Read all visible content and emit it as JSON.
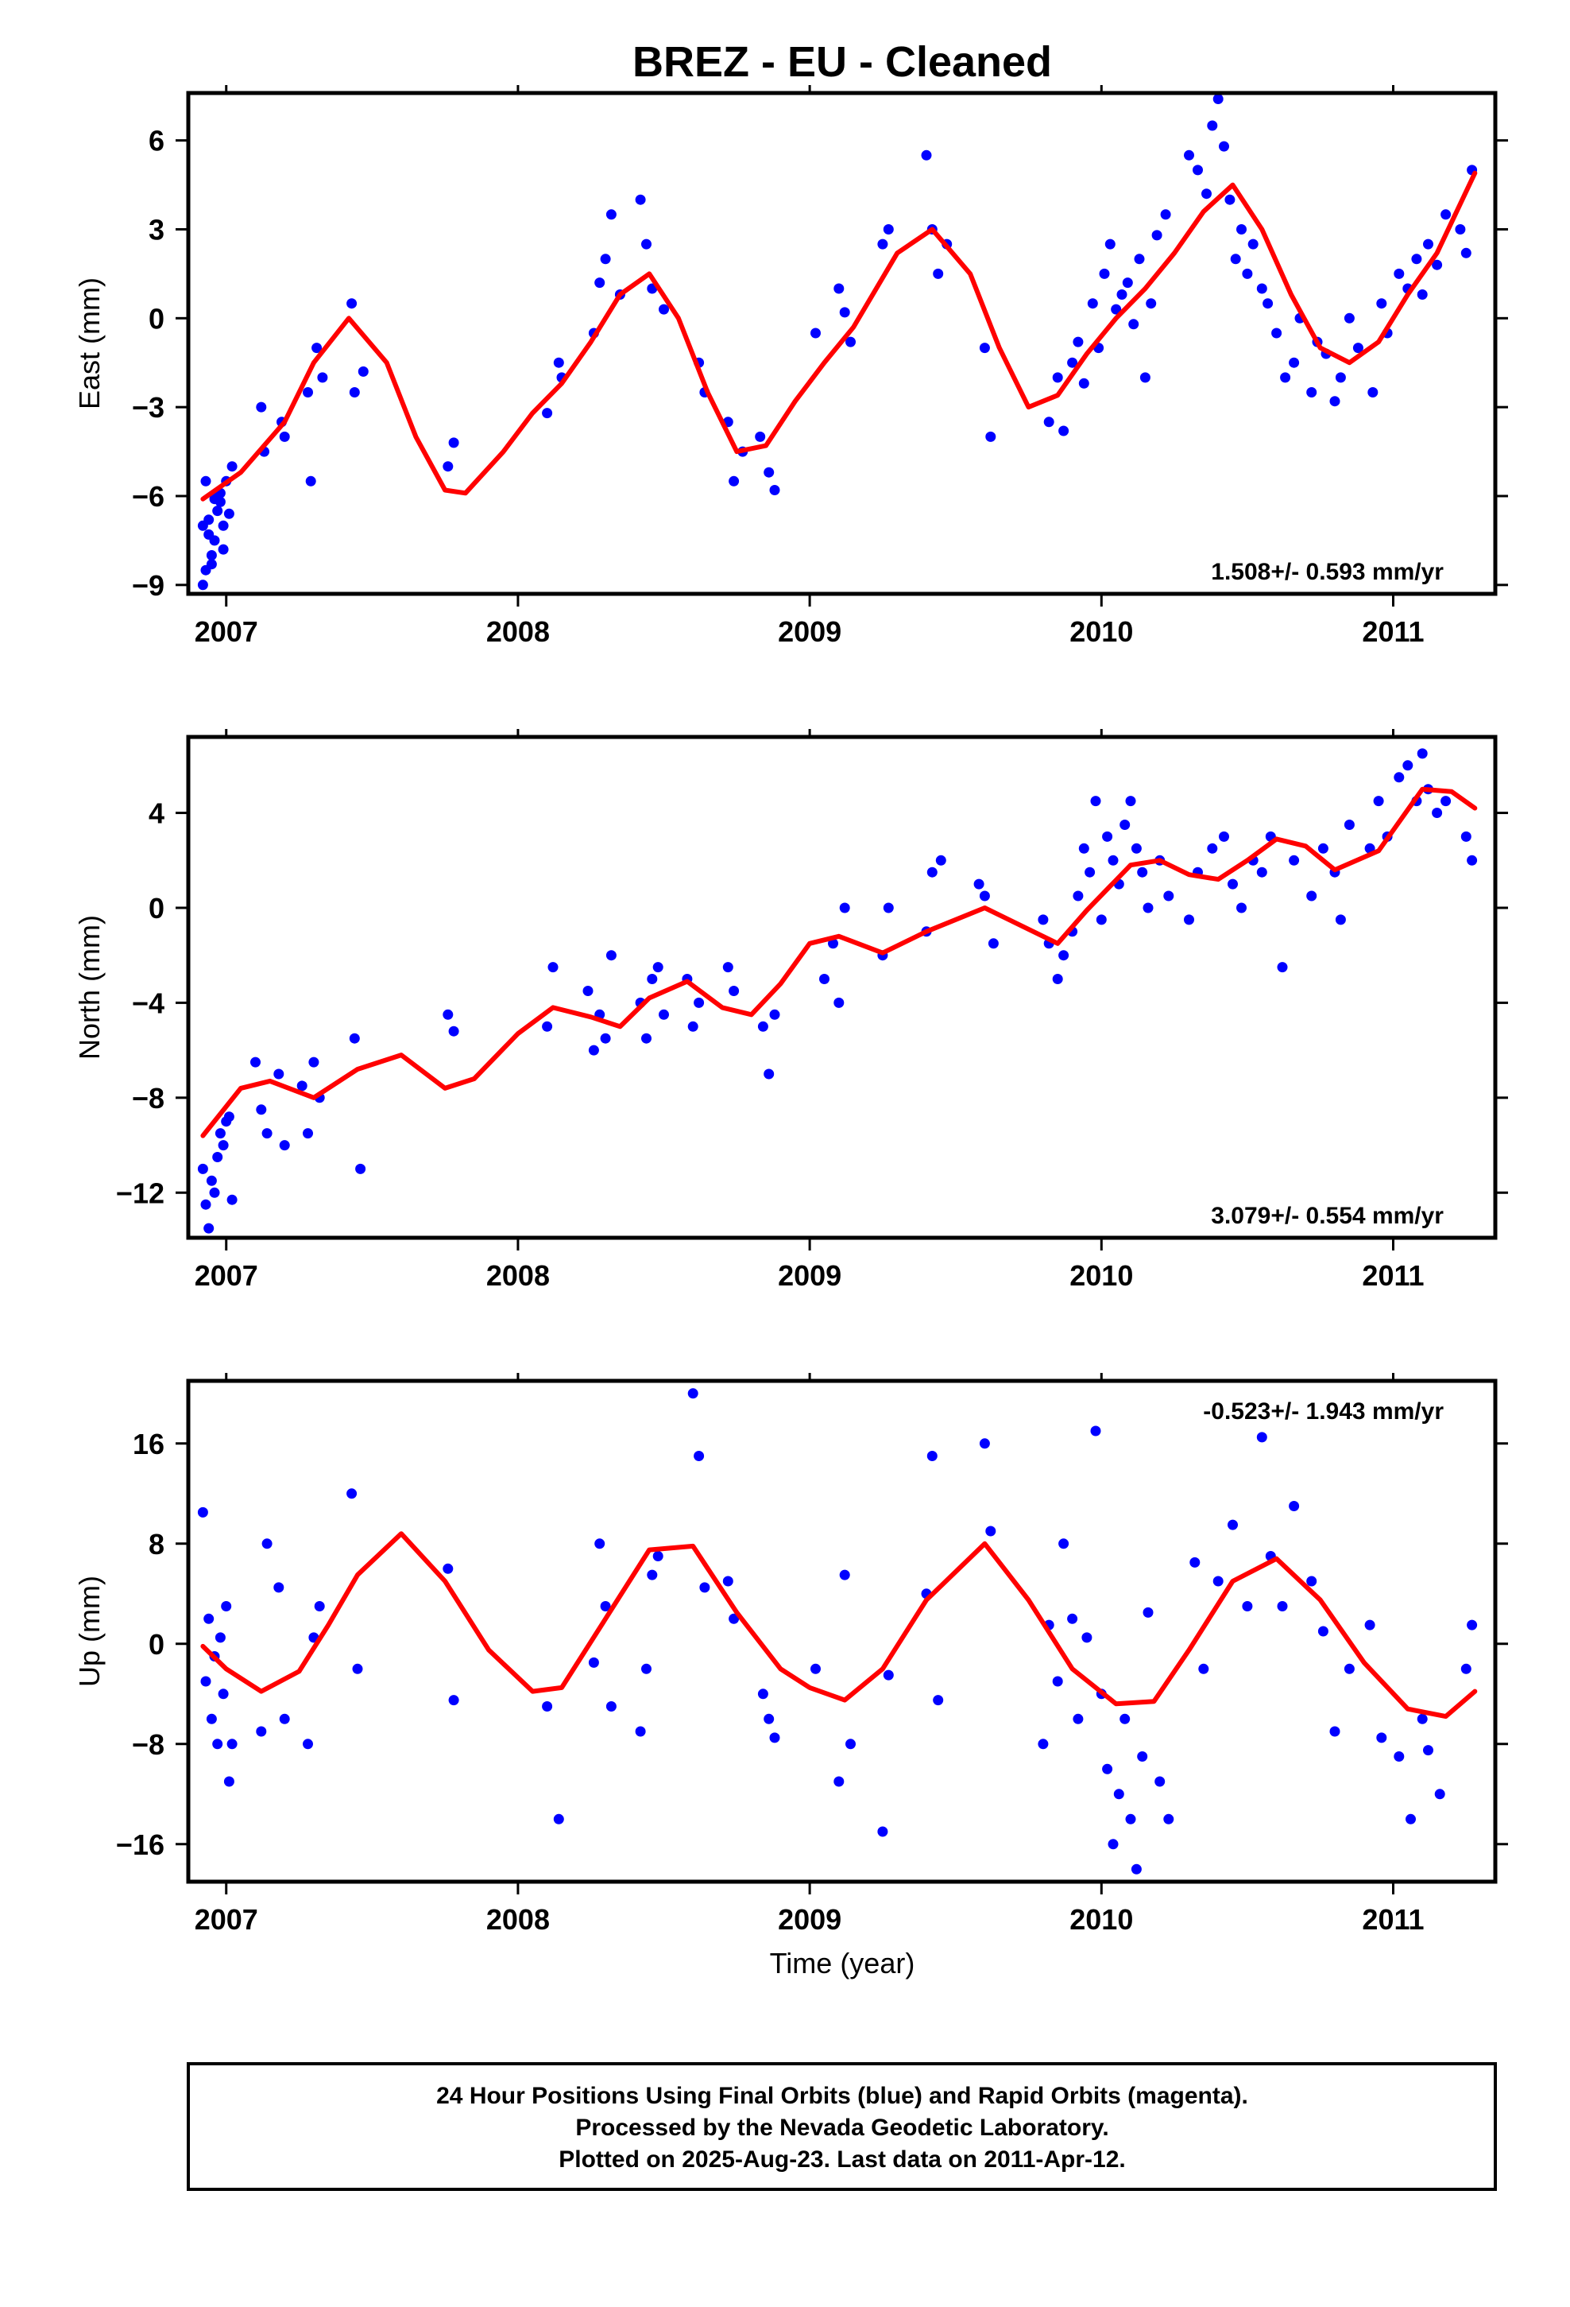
{
  "title": "BREZ  - EU - Cleaned",
  "xlabel": "Time (year)",
  "footer": {
    "line1": "24 Hour Positions Using Final Orbits (blue) and Rapid Orbits (magenta).",
    "line2": "Processed by the Nevada Geodetic Laboratory.",
    "line3": "Plotted on 2025-Aug-23. Last data on 2011-Apr-12."
  },
  "colors": {
    "points": "#0000ff",
    "model": "#ff0000",
    "frame": "#000000"
  },
  "chart_data": [
    {
      "type": "scatter",
      "ylabel": "East (mm)",
      "rate_label": "1.508+/- 0.593 mm/yr",
      "xlim": [
        2006.87,
        2011.35
      ],
      "ylim": [
        -9.3,
        7.6
      ],
      "x_ticks": [
        2007,
        2008,
        2009,
        2010,
        2011
      ],
      "y_ticks": [
        -9,
        -6,
        -3,
        0,
        3,
        6
      ],
      "grid": false,
      "series": [
        {
          "kind": "points",
          "x": [
            2006.92,
            2006.95,
            2006.97,
            2006.99,
            2007.0,
            2007.02,
            2006.92,
            2006.94,
            2006.96,
            2006.98,
            2006.93,
            2006.95,
            2006.97,
            2006.99,
            2006.94,
            2007.01,
            2006.96,
            2006.93,
            2006.98,
            2007.12,
            2007.13,
            2007.19,
            2007.2,
            2007.28,
            2007.29,
            2007.31,
            2007.33,
            2007.43,
            2007.44,
            2007.47,
            2007.76,
            2007.78,
            2008.1,
            2008.14,
            2008.15,
            2008.26,
            2008.28,
            2008.3,
            2008.32,
            2008.35,
            2008.42,
            2008.44,
            2008.46,
            2008.5,
            2008.62,
            2008.64,
            2008.72,
            2008.74,
            2008.77,
            2008.83,
            2008.86,
            2008.88,
            2009.02,
            2009.1,
            2009.12,
            2009.14,
            2009.25,
            2009.27,
            2009.4,
            2009.42,
            2009.44,
            2009.47,
            2009.6,
            2009.62,
            2009.82,
            2009.85,
            2009.87,
            2009.9,
            2009.92,
            2009.94,
            2009.97,
            2009.99,
            2010.01,
            2010.03,
            2010.05,
            2010.07,
            2010.09,
            2010.11,
            2010.13,
            2010.15,
            2010.17,
            2010.19,
            2010.22,
            2010.3,
            2010.33,
            2010.36,
            2010.38,
            2010.4,
            2010.42,
            2010.44,
            2010.46,
            2010.48,
            2010.5,
            2010.52,
            2010.55,
            2010.57,
            2010.6,
            2010.63,
            2010.66,
            2010.68,
            2010.72,
            2010.74,
            2010.77,
            2010.8,
            2010.82,
            2010.85,
            2010.88,
            2010.93,
            2010.96,
            2010.98,
            2011.02,
            2011.05,
            2011.08,
            2011.1,
            2011.12,
            2011.15,
            2011.18,
            2011.23,
            2011.25,
            2011.27
          ],
          "y": [
            -9.0,
            -8.0,
            -6.5,
            -7.0,
            -5.5,
            -5.0,
            -7.0,
            -6.8,
            -7.5,
            -6.2,
            -5.5,
            -8.3,
            -6.0,
            -7.8,
            -7.3,
            -6.6,
            -6.1,
            -8.5,
            -5.9,
            -3.0,
            -4.5,
            -3.5,
            -4.0,
            -2.5,
            -5.5,
            -1.0,
            -2.0,
            0.5,
            -2.5,
            -1.8,
            -5.0,
            -4.2,
            -3.2,
            -1.5,
            -2.0,
            -0.5,
            1.2,
            2.0,
            3.5,
            0.8,
            4.0,
            2.5,
            1.0,
            0.3,
            -1.5,
            -2.5,
            -3.5,
            -5.5,
            -4.5,
            -4.0,
            -5.2,
            -5.8,
            -0.5,
            1.0,
            0.2,
            -0.8,
            2.5,
            3.0,
            5.5,
            3.0,
            1.5,
            2.5,
            -1.0,
            -4.0,
            -3.5,
            -2.0,
            -3.8,
            -1.5,
            -0.8,
            -2.2,
            0.5,
            -1.0,
            1.5,
            2.5,
            0.3,
            0.8,
            1.2,
            -0.2,
            2.0,
            -2.0,
            0.5,
            2.8,
            3.5,
            5.5,
            5.0,
            4.2,
            6.5,
            7.4,
            5.8,
            4.0,
            2.0,
            3.0,
            1.5,
            2.5,
            1.0,
            0.5,
            -0.5,
            -2.0,
            -1.5,
            0.0,
            -2.5,
            -0.8,
            -1.2,
            -2.8,
            -2.0,
            0.0,
            -1.0,
            -2.5,
            0.5,
            -0.5,
            1.5,
            1.0,
            2.0,
            0.8,
            2.5,
            1.8,
            3.5,
            3.0,
            2.2,
            5.0
          ]
        },
        {
          "kind": "model",
          "x": [
            2006.92,
            2007.05,
            2007.2,
            2007.3,
            2007.42,
            2007.55,
            2007.65,
            2007.75,
            2007.82,
            2007.95,
            2008.05,
            2008.15,
            2008.25,
            2008.35,
            2008.45,
            2008.55,
            2008.65,
            2008.75,
            2008.85,
            2008.95,
            2009.05,
            2009.15,
            2009.3,
            2009.42,
            2009.55,
            2009.65,
            2009.75,
            2009.85,
            2009.95,
            2010.05,
            2010.15,
            2010.25,
            2010.35,
            2010.45,
            2010.55,
            2010.65,
            2010.75,
            2010.85,
            2010.95,
            2011.05,
            2011.15,
            2011.28
          ],
          "y": [
            -6.1,
            -5.2,
            -3.5,
            -1.5,
            0.0,
            -1.5,
            -4.0,
            -5.8,
            -5.9,
            -4.5,
            -3.2,
            -2.2,
            -0.8,
            0.8,
            1.5,
            0.0,
            -2.5,
            -4.5,
            -4.3,
            -2.8,
            -1.5,
            -0.3,
            2.2,
            3.0,
            1.5,
            -1.0,
            -3.0,
            -2.6,
            -1.2,
            0.0,
            1.0,
            2.2,
            3.6,
            4.5,
            3.0,
            0.8,
            -1.0,
            -1.5,
            -0.8,
            0.8,
            2.2,
            4.9
          ]
        }
      ]
    },
    {
      "type": "scatter",
      "ylabel": "North (mm)",
      "rate_label": "3.079+/- 0.554 mm/yr",
      "xlim": [
        2006.87,
        2011.35
      ],
      "ylim": [
        -13.9,
        7.2
      ],
      "x_ticks": [
        2007,
        2008,
        2009,
        2010,
        2011
      ],
      "y_ticks": [
        -12,
        -8,
        -4,
        0,
        4
      ],
      "grid": false,
      "series": [
        {
          "kind": "points",
          "x": [
            2006.92,
            2006.93,
            2006.94,
            2006.95,
            2006.96,
            2006.97,
            2006.98,
            2006.99,
            2007.0,
            2007.01,
            2007.02,
            2007.1,
            2007.12,
            2007.14,
            2007.18,
            2007.2,
            2007.26,
            2007.28,
            2007.3,
            2007.32,
            2007.44,
            2007.46,
            2007.76,
            2007.78,
            2008.1,
            2008.12,
            2008.24,
            2008.26,
            2008.28,
            2008.3,
            2008.32,
            2008.42,
            2008.44,
            2008.46,
            2008.48,
            2008.5,
            2008.58,
            2008.6,
            2008.62,
            2008.72,
            2008.74,
            2008.84,
            2008.86,
            2008.88,
            2009.05,
            2009.08,
            2009.1,
            2009.12,
            2009.25,
            2009.27,
            2009.4,
            2009.42,
            2009.45,
            2009.58,
            2009.6,
            2009.63,
            2009.8,
            2009.82,
            2009.85,
            2009.87,
            2009.9,
            2009.92,
            2009.94,
            2009.96,
            2009.98,
            2010.0,
            2010.02,
            2010.04,
            2010.06,
            2010.08,
            2010.1,
            2010.12,
            2010.14,
            2010.16,
            2010.2,
            2010.23,
            2010.3,
            2010.33,
            2010.38,
            2010.42,
            2010.45,
            2010.48,
            2010.52,
            2010.55,
            2010.58,
            2010.62,
            2010.66,
            2010.72,
            2010.76,
            2010.8,
            2010.82,
            2010.85,
            2010.92,
            2010.95,
            2010.98,
            2011.02,
            2011.05,
            2011.08,
            2011.1,
            2011.12,
            2011.15,
            2011.18,
            2011.25,
            2011.27
          ],
          "y": [
            -11.0,
            -12.5,
            -13.5,
            -11.5,
            -12.0,
            -10.5,
            -9.5,
            -10.0,
            -9.0,
            -8.8,
            -12.3,
            -6.5,
            -8.5,
            -9.5,
            -7.0,
            -10.0,
            -7.5,
            -9.5,
            -6.5,
            -8.0,
            -5.5,
            -11.0,
            -4.5,
            -5.2,
            -5.0,
            -2.5,
            -3.5,
            -6.0,
            -4.5,
            -5.5,
            -2.0,
            -4.0,
            -5.5,
            -3.0,
            -2.5,
            -4.5,
            -3.0,
            -5.0,
            -4.0,
            -2.5,
            -3.5,
            -5.0,
            -7.0,
            -4.5,
            -3.0,
            -1.5,
            -4.0,
            0.0,
            -2.0,
            0.0,
            -1.0,
            1.5,
            2.0,
            1.0,
            0.5,
            -1.5,
            -0.5,
            -1.5,
            -3.0,
            -2.0,
            -1.0,
            0.5,
            2.5,
            1.5,
            4.5,
            -0.5,
            3.0,
            2.0,
            1.0,
            3.5,
            4.5,
            2.5,
            1.5,
            0.0,
            2.0,
            0.5,
            -0.5,
            1.5,
            2.5,
            3.0,
            1.0,
            0.0,
            2.0,
            1.5,
            3.0,
            -2.5,
            2.0,
            0.5,
            2.5,
            1.5,
            -0.5,
            3.5,
            2.5,
            4.5,
            3.0,
            5.5,
            6.0,
            4.5,
            6.5,
            5.0,
            4.0,
            4.5,
            3.0,
            2.0
          ]
        },
        {
          "kind": "model",
          "x": [
            2006.92,
            2007.05,
            2007.15,
            2007.3,
            2007.45,
            2007.6,
            2007.75,
            2007.85,
            2008.0,
            2008.12,
            2008.25,
            2008.35,
            2008.45,
            2008.58,
            2008.7,
            2008.8,
            2008.9,
            2009.0,
            2009.1,
            2009.25,
            2009.4,
            2009.6,
            2009.7,
            2009.85,
            2009.95,
            2010.1,
            2010.2,
            2010.3,
            2010.4,
            2010.5,
            2010.6,
            2010.7,
            2010.8,
            2010.95,
            2011.1,
            2011.2,
            2011.28
          ],
          "y": [
            -9.6,
            -7.6,
            -7.3,
            -8.0,
            -6.8,
            -6.2,
            -7.6,
            -7.2,
            -5.3,
            -4.2,
            -4.6,
            -5.0,
            -3.8,
            -3.1,
            -4.2,
            -4.5,
            -3.2,
            -1.5,
            -1.2,
            -1.9,
            -1.0,
            0.0,
            -0.6,
            -1.5,
            -0.1,
            1.8,
            2.0,
            1.4,
            1.2,
            2.0,
            2.9,
            2.6,
            1.6,
            2.4,
            5.0,
            4.9,
            4.2
          ]
        }
      ]
    },
    {
      "type": "scatter",
      "ylabel": "Up (mm)",
      "rate_label": "-0.523+/- 1.943 mm/yr",
      "xlim": [
        2006.87,
        2011.35
      ],
      "ylim": [
        -19.0,
        21.0
      ],
      "x_ticks": [
        2007,
        2008,
        2009,
        2010,
        2011
      ],
      "y_ticks": [
        -16,
        -8,
        0,
        8,
        16
      ],
      "grid": false,
      "series": [
        {
          "kind": "points",
          "x": [
            2006.92,
            2006.93,
            2006.94,
            2006.95,
            2006.96,
            2006.97,
            2006.98,
            2006.99,
            2007.0,
            2007.01,
            2007.02,
            2007.12,
            2007.14,
            2007.18,
            2007.2,
            2007.28,
            2007.3,
            2007.32,
            2007.43,
            2007.45,
            2007.76,
            2007.78,
            2008.1,
            2008.14,
            2008.26,
            2008.28,
            2008.3,
            2008.32,
            2008.42,
            2008.44,
            2008.46,
            2008.48,
            2008.6,
            2008.62,
            2008.64,
            2008.72,
            2008.74,
            2008.84,
            2008.86,
            2008.88,
            2009.02,
            2009.1,
            2009.12,
            2009.14,
            2009.25,
            2009.27,
            2009.4,
            2009.42,
            2009.44,
            2009.6,
            2009.62,
            2009.8,
            2009.82,
            2009.85,
            2009.87,
            2009.9,
            2009.92,
            2009.95,
            2009.98,
            2010.0,
            2010.02,
            2010.04,
            2010.06,
            2010.08,
            2010.1,
            2010.12,
            2010.14,
            2010.16,
            2010.2,
            2010.23,
            2010.32,
            2010.35,
            2010.4,
            2010.45,
            2010.5,
            2010.55,
            2010.58,
            2010.62,
            2010.66,
            2010.72,
            2010.76,
            2010.8,
            2010.85,
            2010.92,
            2010.96,
            2011.02,
            2011.06,
            2011.1,
            2011.12,
            2011.16,
            2011.25,
            2011.27
          ],
          "y": [
            10.5,
            -3.0,
            2.0,
            -6.0,
            -1.0,
            -8.0,
            0.5,
            -4.0,
            3.0,
            -11.0,
            -8.0,
            -7.0,
            8.0,
            4.5,
            -6.0,
            -8.0,
            0.5,
            3.0,
            12.0,
            -2.0,
            6.0,
            -4.5,
            -5.0,
            -14.0,
            -1.5,
            8.0,
            3.0,
            -5.0,
            -7.0,
            -2.0,
            5.5,
            7.0,
            20.0,
            15.0,
            4.5,
            5.0,
            2.0,
            -4.0,
            -6.0,
            -7.5,
            -2.0,
            -11.0,
            5.5,
            -8.0,
            -15.0,
            -2.5,
            4.0,
            15.0,
            -4.5,
            16.0,
            9.0,
            -8.0,
            1.5,
            -3.0,
            8.0,
            2.0,
            -6.0,
            0.5,
            17.0,
            -4.0,
            -10.0,
            -16.0,
            -12.0,
            -6.0,
            -14.0,
            -18.0,
            -9.0,
            2.5,
            -11.0,
            -14.0,
            6.5,
            -2.0,
            5.0,
            9.5,
            3.0,
            16.5,
            7.0,
            3.0,
            11.0,
            5.0,
            1.0,
            -7.0,
            -2.0,
            1.5,
            -7.5,
            -9.0,
            -14.0,
            -6.0,
            -8.5,
            -12.0,
            -2.0,
            1.5
          ]
        },
        {
          "kind": "model",
          "x": [
            2006.92,
            2007.0,
            2007.12,
            2007.25,
            2007.35,
            2007.45,
            2007.6,
            2007.75,
            2007.9,
            2008.05,
            2008.15,
            2008.3,
            2008.45,
            2008.6,
            2008.75,
            2008.9,
            2009.0,
            2009.12,
            2009.25,
            2009.4,
            2009.6,
            2009.75,
            2009.9,
            2010.05,
            2010.18,
            2010.3,
            2010.45,
            2010.6,
            2010.75,
            2010.9,
            2011.05,
            2011.18,
            2011.28
          ],
          "y": [
            -0.2,
            -2.0,
            -3.8,
            -2.2,
            1.5,
            5.5,
            8.8,
            5.0,
            -0.5,
            -3.8,
            -3.5,
            2.0,
            7.5,
            7.8,
            2.5,
            -2.0,
            -3.5,
            -4.5,
            -2.0,
            3.5,
            8.0,
            3.5,
            -2.0,
            -4.8,
            -4.6,
            -0.5,
            5.0,
            6.8,
            3.5,
            -1.5,
            -5.2,
            -5.8,
            -3.8
          ]
        }
      ]
    }
  ]
}
